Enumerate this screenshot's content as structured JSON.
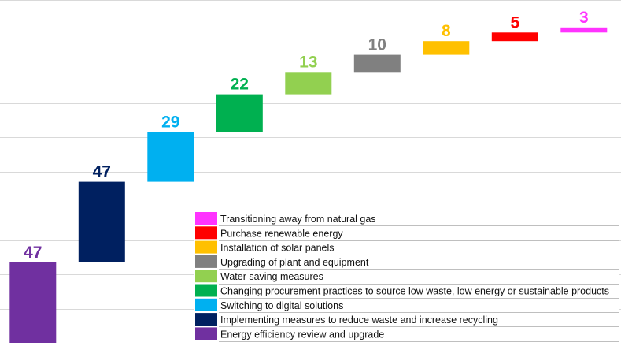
{
  "chart_data": {
    "type": "bar",
    "subtype": "waterfall",
    "categories": [
      "Energy efficiency review and upgrade",
      "Implementing measures to reduce waste and increase recycling",
      "Switching to digital solutions",
      "Changing procurement practices to source low waste, low energy or sustainable products",
      "Water saving measures",
      "Upgrading of plant and equipment",
      "Installation of solar panels",
      "Purchase renewable energy",
      "Transitioning away from natural gas"
    ],
    "values": [
      47,
      47,
      29,
      22,
      13,
      10,
      8,
      5,
      3
    ],
    "value_labels": [
      "47",
      "47",
      "29",
      "22",
      "13",
      "10",
      "8",
      "5",
      "3"
    ],
    "colors": [
      "#7030A0",
      "#002060",
      "#00B0F0",
      "#00B050",
      "#92D050",
      "#808080",
      "#FFC000",
      "#FF0000",
      "#FF33FF"
    ],
    "ylim": [
      0,
      200
    ],
    "grid": true,
    "legend": {
      "position": "bottom-right",
      "order": "reversed"
    }
  }
}
